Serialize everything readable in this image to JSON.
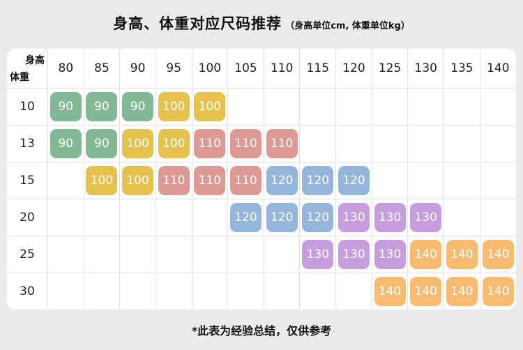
{
  "chart_data": {
    "type": "table",
    "title": "身高、体重对应尺码推荐",
    "subtitle": "（身高单位cm, 体重单位kg）",
    "note": "*此表为经验总结，仅供参考",
    "x_header": "身高",
    "y_header": "体重",
    "columns": [
      "80",
      "85",
      "90",
      "95",
      "100",
      "105",
      "110",
      "115",
      "120",
      "125",
      "130",
      "135",
      "140"
    ],
    "rows": [
      "10",
      "13",
      "15",
      "20",
      "25",
      "30"
    ],
    "cells": [
      [
        "90",
        "90",
        "90",
        "100",
        "100",
        null,
        null,
        null,
        null,
        null,
        null,
        null,
        null
      ],
      [
        "90",
        "90",
        "100",
        "100",
        "110",
        "110",
        "110",
        null,
        null,
        null,
        null,
        null,
        null
      ],
      [
        null,
        "100",
        "100",
        "110",
        "110",
        "110",
        "120",
        "120",
        "120",
        null,
        null,
        null,
        null
      ],
      [
        null,
        null,
        null,
        null,
        null,
        "120",
        "120",
        "120",
        "130",
        "130",
        "130",
        null,
        null
      ],
      [
        null,
        null,
        null,
        null,
        null,
        null,
        null,
        "130",
        "130",
        "130",
        "140",
        "140",
        "140"
      ],
      [
        null,
        null,
        null,
        null,
        null,
        null,
        null,
        null,
        null,
        "140",
        "140",
        "140",
        "140"
      ]
    ],
    "size_colors": {
      "90": "#83b897",
      "100": "#e4c24d",
      "110": "#dd9a94",
      "120": "#95b6da",
      "130": "#c79edd",
      "140": "#f8bb72"
    }
  },
  "page": {
    "background": "#ebebeb",
    "card_background": "#ffffff",
    "grid_line_color": "#e4e4e4"
  }
}
